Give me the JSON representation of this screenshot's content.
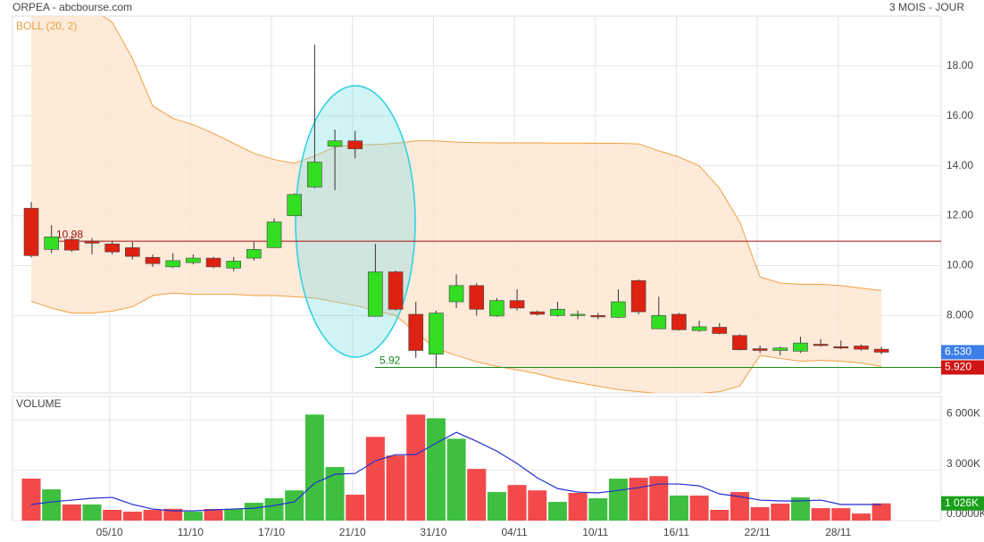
{
  "chart_data": [
    {
      "type": "candlestick",
      "title": "ORPEA - abcbourse.com",
      "subtitle": "3 MOIS - JOUR",
      "categories": [
        null,
        null,
        null,
        null,
        "05/10",
        null,
        null,
        null,
        "11/10",
        null,
        null,
        null,
        "17/10",
        null,
        null,
        null,
        "21/10",
        null,
        null,
        null,
        "31/10",
        null,
        null,
        null,
        "04/11",
        null,
        null,
        null,
        "10/11",
        null,
        null,
        null,
        "16/11",
        null,
        null,
        null,
        "22/11",
        null,
        null,
        null,
        "28/11",
        null,
        null
      ],
      "open": [
        12.3,
        10.65,
        11.05,
        10.98,
        10.87,
        10.72,
        10.33,
        9.95,
        10.12,
        10.3,
        9.9,
        10.3,
        10.72,
        12.0,
        13.15,
        14.78,
        15.0,
        7.97,
        9.75,
        8.05,
        6.45,
        8.55,
        9.2,
        7.98,
        8.6,
        8.15,
        8.0,
        8.02,
        8.0,
        7.93,
        9.4,
        7.47,
        8.05,
        7.4,
        7.53,
        7.2,
        6.67,
        6.6,
        6.57,
        6.85,
        6.75,
        6.78,
        6.65
      ],
      "high": [
        12.55,
        11.62,
        11.2,
        11.1,
        11.0,
        10.95,
        10.45,
        10.5,
        10.45,
        10.35,
        10.35,
        10.95,
        11.9,
        12.9,
        18.86,
        15.45,
        15.4,
        10.87,
        9.8,
        8.55,
        8.2,
        9.65,
        9.3,
        8.7,
        9.05,
        8.2,
        8.55,
        8.2,
        8.1,
        9.05,
        9.45,
        8.75,
        8.1,
        7.8,
        7.7,
        7.25,
        6.8,
        6.75,
        7.15,
        7.05,
        7.0,
        6.85,
        6.75
      ],
      "low": [
        10.33,
        10.5,
        10.55,
        10.45,
        10.45,
        10.25,
        9.95,
        9.9,
        10.05,
        9.9,
        9.78,
        10.2,
        10.7,
        12.0,
        13.1,
        13.02,
        14.3,
        7.95,
        8.2,
        6.3,
        5.92,
        8.3,
        8.0,
        7.95,
        8.2,
        8.0,
        7.95,
        7.85,
        7.85,
        7.9,
        8.05,
        7.45,
        7.4,
        7.35,
        7.25,
        6.6,
        6.5,
        6.4,
        6.5,
        6.75,
        6.65,
        6.6,
        6.45
      ],
      "close": [
        10.4,
        11.15,
        10.62,
        10.9,
        10.55,
        10.37,
        10.08,
        10.2,
        10.3,
        9.95,
        10.18,
        10.65,
        11.75,
        12.85,
        14.15,
        15.0,
        14.68,
        9.75,
        8.25,
        6.6,
        8.1,
        9.2,
        8.25,
        8.6,
        8.3,
        8.05,
        8.25,
        8.05,
        7.97,
        8.55,
        8.15,
        8.0,
        7.43,
        7.55,
        7.28,
        6.63,
        6.6,
        6.7,
        6.9,
        6.8,
        6.7,
        6.65,
        6.53
      ],
      "up_color": "#33dd22",
      "down_color": "#dd2211",
      "overlay": {
        "name": "BOLL (20, 2)",
        "color": "#f0a040",
        "fill": "#fde5cf",
        "upper": [
          21.8,
          21.3,
          20.8,
          20.3,
          19.75,
          18.3,
          16.4,
          15.9,
          15.65,
          15.3,
          14.9,
          14.5,
          14.25,
          14.1,
          14.4,
          14.75,
          14.85,
          14.85,
          14.9,
          15.0,
          15.0,
          14.95,
          14.93,
          14.92,
          14.92,
          14.92,
          14.91,
          14.91,
          14.9,
          14.9,
          14.88,
          14.6,
          14.35,
          14.0,
          13.1,
          11.75,
          9.55,
          9.3,
          9.25,
          9.25,
          9.2,
          9.1,
          9.0
        ],
        "lower": [
          8.57,
          8.3,
          8.1,
          8.1,
          8.18,
          8.35,
          8.8,
          8.9,
          8.85,
          8.85,
          8.85,
          8.8,
          8.8,
          8.75,
          8.7,
          8.55,
          8.4,
          8.2,
          8.0,
          7.32,
          6.67,
          6.4,
          6.15,
          5.96,
          5.82,
          5.67,
          5.46,
          5.31,
          5.17,
          5.03,
          4.95,
          4.88,
          4.85,
          4.88,
          4.95,
          5.17,
          6.4,
          6.28,
          6.17,
          6.2,
          6.17,
          6.1,
          5.96
        ]
      },
      "lines": [
        {
          "value": 10.98,
          "label": "10.98",
          "color": "#a01010"
        },
        {
          "value": 5.92,
          "label": "5.92",
          "color": "#1a8a1a"
        }
      ],
      "badges": [
        {
          "value": 6.53,
          "label": "6.530",
          "color": "#3d7ee8"
        },
        {
          "value": 5.92,
          "label": "5.920",
          "color": "#d01515"
        }
      ],
      "ylim": [
        4.9,
        20
      ],
      "yticks": [
        {
          "value": 8,
          "label": "8.000"
        },
        {
          "value": 10,
          "label": "10.00"
        },
        {
          "value": 12,
          "label": "12.00"
        },
        {
          "value": 14,
          "label": "14.00"
        },
        {
          "value": 16,
          "label": "16.00"
        },
        {
          "value": 18,
          "label": "18.00"
        }
      ],
      "grid": true
    },
    {
      "type": "bar",
      "title": "VOLUME",
      "values": [
        2500,
        1860,
        960,
        960,
        640,
        530,
        640,
        700,
        530,
        690,
        690,
        1060,
        1330,
        1800,
        6320,
        3190,
        1540,
        4990,
        3880,
        6320,
        6100,
        4880,
        3080,
        1700,
        2120,
        1800,
        1115,
        1650,
        1330,
        2500,
        2550,
        2650,
        1490,
        1490,
        640,
        1700,
        800,
        1010,
        1380,
        740,
        740,
        420,
        1026
      ],
      "colors": [
        "#f24a4a",
        "#3fbf3f",
        "#f24a4a",
        "#3fbf3f",
        "#f24a4a",
        "#f24a4a",
        "#f24a4a",
        "#f24a4a",
        "#3fbf3f",
        "#f24a4a",
        "#3fbf3f",
        "#3fbf3f",
        "#3fbf3f",
        "#3fbf3f",
        "#3fbf3f",
        "#3fbf3f",
        "#f24a4a",
        "#f24a4a",
        "#f24a4a",
        "#f24a4a",
        "#3fbf3f",
        "#3fbf3f",
        "#f24a4a",
        "#3fbf3f",
        "#f24a4a",
        "#f24a4a",
        "#3fbf3f",
        "#f24a4a",
        "#3fbf3f",
        "#3fbf3f",
        "#f24a4a",
        "#f24a4a",
        "#3fbf3f",
        "#f24a4a",
        "#f24a4a",
        "#f24a4a",
        "#f24a4a",
        "#f24a4a",
        "#3fbf3f",
        "#f24a4a",
        "#f24a4a",
        "#f24a4a",
        "#f24a4a"
      ],
      "average": {
        "color": "#1f2fd0",
        "values": [
          960,
          1115,
          1220,
          1330,
          1380,
          960,
          690,
          580,
          580,
          640,
          690,
          740,
          900,
          1115,
          2230,
          2760,
          2810,
          3560,
          3930,
          3930,
          4620,
          5260,
          4730,
          4140,
          3400,
          2550,
          1910,
          1700,
          1650,
          1800,
          1960,
          2180,
          2180,
          2070,
          1590,
          1430,
          1220,
          1170,
          1170,
          1220,
          960,
          960,
          960
        ]
      },
      "badge": {
        "value": 1026,
        "label": "1 026K",
        "color": "#1aa01a"
      },
      "ylim": [
        0,
        7400
      ],
      "yticks": [
        {
          "value": 0,
          "label": "0.0000K"
        },
        {
          "value": 3000,
          "label": "3 000K"
        },
        {
          "value": 6000,
          "label": "6 000K"
        }
      ],
      "grid": true
    }
  ]
}
